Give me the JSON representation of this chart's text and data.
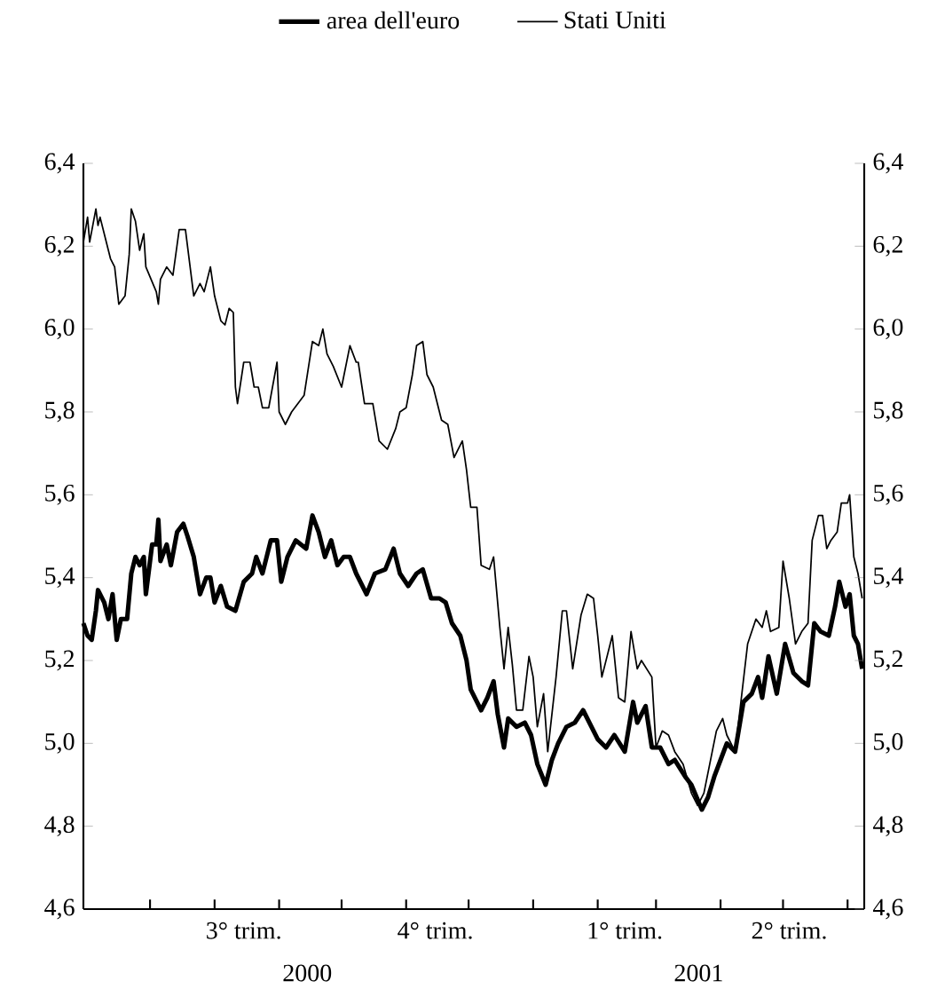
{
  "chart_data": {
    "type": "line",
    "legend": "top",
    "marker": "none",
    "line_style": "solid",
    "xlim": [
      "2000-05-30",
      "2001-06-09"
    ],
    "xticks": [
      {
        "value": "2000-07-01",
        "label": null
      },
      {
        "value": "2000-08-01",
        "label": null
      },
      {
        "value": "2000-09-01",
        "label": null
      },
      {
        "value": "2000-10-01",
        "label": null
      },
      {
        "value": "2000-11-01",
        "label": null
      },
      {
        "value": "2000-12-01",
        "label": null
      },
      {
        "value": "2001-01-01",
        "label": null
      },
      {
        "value": "2001-02-01",
        "label": null
      },
      {
        "value": "2001-03-01",
        "label": null
      },
      {
        "value": "2001-04-01",
        "label": null
      },
      {
        "value": "2001-05-01",
        "label": null
      },
      {
        "value": "2001-06-01",
        "label": null
      },
      {
        "value": "2000-08-15",
        "label": "3° trim."
      },
      {
        "value": "2000-11-15",
        "label": "4° trim."
      },
      {
        "value": "2001-02-14",
        "label": "1° trim."
      },
      {
        "value": "2001-05-04",
        "label": "2° trim."
      }
    ],
    "ylim": [
      4.6,
      6.4
    ],
    "yticks": [
      {
        "value": 4.6,
        "label": "4,6"
      },
      {
        "value": 4.8,
        "label": "4,8"
      },
      {
        "value": 5.0,
        "label": "5,0"
      },
      {
        "value": 5.2,
        "label": "5,2"
      },
      {
        "value": 5.4,
        "label": "5,4"
      },
      {
        "value": 5.6,
        "label": "5,6"
      },
      {
        "value": 5.8,
        "label": "5,8"
      },
      {
        "value": 6.0,
        "label": "6,0"
      },
      {
        "value": 6.2,
        "label": "6,2"
      },
      {
        "value": 6.4,
        "label": "6,4"
      }
    ],
    "y2lim": [
      4.6,
      6.4
    ],
    "y2ticks": [
      {
        "value": 4.6,
        "label": "4,6"
      },
      {
        "value": 4.8,
        "label": "4,8"
      },
      {
        "value": 5.0,
        "label": "5,0"
      },
      {
        "value": 5.2,
        "label": "5,2"
      },
      {
        "value": 5.4,
        "label": "5,4"
      },
      {
        "value": 5.6,
        "label": "5,6"
      },
      {
        "value": 5.8,
        "label": "5,8"
      },
      {
        "value": 6.0,
        "label": "6,0"
      },
      {
        "value": 6.2,
        "label": "6,2"
      },
      {
        "value": 6.4,
        "label": "6,4"
      }
    ],
    "annotations": [
      "2000",
      "2001"
    ],
    "series": [
      {
        "name": "area dell'euro",
        "color": "#000000",
        "x": [
          "2000-05-30",
          "2000-06-01",
          "2000-06-03",
          "2000-06-05",
          "2000-06-06",
          "2000-06-09",
          "2000-06-11",
          "2000-06-13",
          "2000-06-15",
          "2000-06-17",
          "2000-06-20",
          "2000-06-22",
          "2000-06-24",
          "2000-06-26",
          "2000-06-28",
          "2000-06-29",
          "2000-07-02",
          "2000-07-04",
          "2000-07-05",
          "2000-07-06",
          "2000-07-09",
          "2000-07-11",
          "2000-07-14",
          "2000-07-17",
          "2000-07-19",
          "2000-07-22",
          "2000-07-25",
          "2000-07-28",
          "2000-07-30",
          "2000-08-01",
          "2000-08-04",
          "2000-08-07",
          "2000-08-11",
          "2000-08-15",
          "2000-08-19",
          "2000-08-21",
          "2000-08-24",
          "2000-08-28",
          "2000-08-31",
          "2000-09-02",
          "2000-09-05",
          "2000-09-09",
          "2000-09-14",
          "2000-09-17",
          "2000-09-20",
          "2000-09-23",
          "2000-09-26",
          "2000-09-29",
          "2000-10-02",
          "2000-10-05",
          "2000-10-08",
          "2000-10-13",
          "2000-10-17",
          "2000-10-22",
          "2000-10-26",
          "2000-10-29",
          "2000-11-02",
          "2000-11-06",
          "2000-11-09",
          "2000-11-13",
          "2000-11-17",
          "2000-11-20",
          "2000-11-23",
          "2000-11-27",
          "2000-11-30",
          "2000-12-02",
          "2000-12-05",
          "2000-12-07",
          "2000-12-10",
          "2000-12-13",
          "2000-12-15",
          "2000-12-18",
          "2000-12-20",
          "2000-12-24",
          "2000-12-28",
          "2000-12-31",
          "2001-01-03",
          "2001-01-07",
          "2001-01-10",
          "2001-01-13",
          "2001-01-17",
          "2001-01-21",
          "2001-01-25",
          "2001-01-29",
          "2001-02-01",
          "2001-02-05",
          "2001-02-09",
          "2001-02-14",
          "2001-02-18",
          "2001-02-20",
          "2001-02-24",
          "2001-02-27",
          "2001-03-03",
          "2001-03-07",
          "2001-03-10",
          "2001-03-15",
          "2001-03-18",
          "2001-03-23",
          "2001-03-26",
          "2001-03-29",
          "2001-04-01",
          "2001-04-04",
          "2001-04-08",
          "2001-04-12",
          "2001-04-16",
          "2001-04-19",
          "2001-04-21",
          "2001-04-24",
          "2001-04-28",
          "2001-05-02",
          "2001-05-06",
          "2001-05-10",
          "2001-05-13",
          "2001-05-16",
          "2001-05-19",
          "2001-05-23",
          "2001-05-26",
          "2001-05-28",
          "2001-05-31",
          "2001-06-02",
          "2001-06-04",
          "2001-06-06",
          "2001-06-08"
        ],
        "values": [
          5.29,
          5.26,
          5.25,
          5.32,
          5.37,
          5.34,
          5.3,
          5.36,
          5.25,
          5.3,
          5.3,
          5.41,
          5.45,
          5.43,
          5.45,
          5.36,
          5.48,
          5.48,
          5.54,
          5.44,
          5.48,
          5.43,
          5.51,
          5.53,
          5.5,
          5.45,
          5.36,
          5.4,
          5.4,
          5.34,
          5.38,
          5.33,
          5.32,
          5.39,
          5.41,
          5.45,
          5.41,
          5.49,
          5.49,
          5.39,
          5.45,
          5.49,
          5.47,
          5.55,
          5.51,
          5.45,
          5.49,
          5.43,
          5.45,
          5.45,
          5.41,
          5.36,
          5.41,
          5.42,
          5.47,
          5.41,
          5.38,
          5.41,
          5.42,
          5.35,
          5.35,
          5.34,
          5.29,
          5.26,
          5.2,
          5.13,
          5.1,
          5.08,
          5.11,
          5.15,
          5.07,
          4.99,
          5.06,
          5.04,
          5.05,
          5.02,
          4.95,
          4.9,
          4.96,
          5.0,
          5.04,
          5.05,
          5.08,
          5.04,
          5.01,
          4.99,
          5.02,
          4.98,
          5.1,
          5.05,
          5.09,
          4.99,
          4.99,
          4.95,
          4.96,
          4.92,
          4.9,
          4.84,
          4.87,
          4.92,
          4.96,
          5.0,
          4.98,
          5.1,
          5.12,
          5.16,
          5.11,
          5.21,
          5.12,
          5.24,
          5.17,
          5.15,
          5.14,
          5.29,
          5.27,
          5.26,
          5.33,
          5.39,
          5.33,
          5.36,
          5.26,
          5.24,
          5.18
        ]
      },
      {
        "name": "Stati Uniti",
        "color": "#000000",
        "x": [
          "2000-05-30",
          "2000-06-01",
          "2000-06-02",
          "2000-06-05",
          "2000-06-06",
          "2000-06-07",
          "2000-06-11",
          "2000-06-12",
          "2000-06-14",
          "2000-06-16",
          "2000-06-19",
          "2000-06-21",
          "2000-06-22",
          "2000-06-24",
          "2000-06-26",
          "2000-06-28",
          "2000-06-29",
          "2000-07-04",
          "2000-07-05",
          "2000-07-06",
          "2000-07-09",
          "2000-07-12",
          "2000-07-15",
          "2000-07-18",
          "2000-07-21",
          "2000-07-22",
          "2000-07-25",
          "2000-07-27",
          "2000-07-30",
          "2000-08-01",
          "2000-08-04",
          "2000-08-06",
          "2000-08-08",
          "2000-08-10",
          "2000-08-11",
          "2000-08-12",
          "2000-08-15",
          "2000-08-18",
          "2000-08-20",
          "2000-08-22",
          "2000-08-24",
          "2000-08-27",
          "2000-08-31",
          "2000-09-01",
          "2000-09-04",
          "2000-09-07",
          "2000-09-13",
          "2000-09-17",
          "2000-09-20",
          "2000-09-22",
          "2000-09-24",
          "2000-09-27",
          "2000-10-01",
          "2000-10-05",
          "2000-10-08",
          "2000-10-09",
          "2000-10-12",
          "2000-10-16",
          "2000-10-19",
          "2000-10-23",
          "2000-10-27",
          "2000-10-29",
          "2000-11-01",
          "2000-11-04",
          "2000-11-06",
          "2000-11-09",
          "2000-11-11",
          "2000-11-14",
          "2000-11-18",
          "2000-11-21",
          "2000-11-24",
          "2000-11-28",
          "2000-11-30",
          "2000-12-02",
          "2000-12-05",
          "2000-12-07",
          "2000-12-11",
          "2000-12-13",
          "2000-12-16",
          "2000-12-18",
          "2000-12-20",
          "2000-12-22",
          "2000-12-24",
          "2000-12-27",
          "2000-12-30",
          "2001-01-01",
          "2001-01-03",
          "2001-01-06",
          "2001-01-08",
          "2001-01-12",
          "2001-01-15",
          "2001-01-17",
          "2001-01-20",
          "2001-01-24",
          "2001-01-27",
          "2001-01-30",
          "2001-02-01",
          "2001-02-03",
          "2001-02-08",
          "2001-02-11",
          "2001-02-14",
          "2001-02-17",
          "2001-02-20",
          "2001-02-22",
          "2001-02-27",
          "2001-03-01",
          "2001-03-04",
          "2001-03-07",
          "2001-03-10",
          "2001-03-14",
          "2001-03-18",
          "2001-03-21",
          "2001-03-24",
          "2001-03-28",
          "2001-03-30",
          "2001-04-02",
          "2001-04-04",
          "2001-04-08",
          "2001-04-11",
          "2001-04-14",
          "2001-04-18",
          "2001-04-21",
          "2001-04-23",
          "2001-04-25",
          "2001-04-29",
          "2001-05-01",
          "2001-05-04",
          "2001-05-07",
          "2001-05-10",
          "2001-05-13",
          "2001-05-15",
          "2001-05-18",
          "2001-05-20",
          "2001-05-22",
          "2001-05-24",
          "2001-05-27",
          "2001-05-29",
          "2001-06-01",
          "2001-06-02",
          "2001-06-04",
          "2001-06-06",
          "2001-06-08"
        ],
        "values": [
          6.21,
          6.27,
          6.21,
          6.29,
          6.25,
          6.27,
          6.19,
          6.17,
          6.15,
          6.06,
          6.08,
          6.18,
          6.29,
          6.26,
          6.19,
          6.23,
          6.15,
          6.09,
          6.06,
          6.12,
          6.15,
          6.13,
          6.24,
          6.24,
          6.12,
          6.08,
          6.11,
          6.09,
          6.15,
          6.08,
          6.02,
          6.01,
          6.05,
          6.04,
          5.86,
          5.82,
          5.92,
          5.92,
          5.86,
          5.86,
          5.81,
          5.81,
          5.92,
          5.8,
          5.77,
          5.8,
          5.84,
          5.97,
          5.96,
          6.0,
          5.94,
          5.91,
          5.86,
          5.96,
          5.92,
          5.92,
          5.82,
          5.82,
          5.73,
          5.71,
          5.76,
          5.8,
          5.81,
          5.89,
          5.96,
          5.97,
          5.89,
          5.86,
          5.78,
          5.77,
          5.69,
          5.73,
          5.66,
          5.57,
          5.57,
          5.43,
          5.42,
          5.45,
          5.28,
          5.18,
          5.28,
          5.19,
          5.08,
          5.08,
          5.21,
          5.16,
          5.04,
          5.12,
          4.98,
          5.16,
          5.32,
          5.32,
          5.18,
          5.31,
          5.36,
          5.35,
          5.26,
          5.16,
          5.26,
          5.11,
          5.1,
          5.27,
          5.18,
          5.2,
          5.16,
          4.99,
          5.03,
          5.02,
          4.98,
          4.95,
          4.88,
          4.85,
          4.88,
          4.98,
          5.03,
          5.06,
          5.02,
          4.98,
          5.11,
          5.24,
          5.3,
          5.28,
          5.32,
          5.27,
          5.28,
          5.44,
          5.35,
          5.24,
          5.27,
          5.29,
          5.49,
          5.55,
          5.55,
          5.47,
          5.49,
          5.51,
          5.58,
          5.58,
          5.6,
          5.45,
          5.41,
          5.35
        ]
      }
    ]
  }
}
